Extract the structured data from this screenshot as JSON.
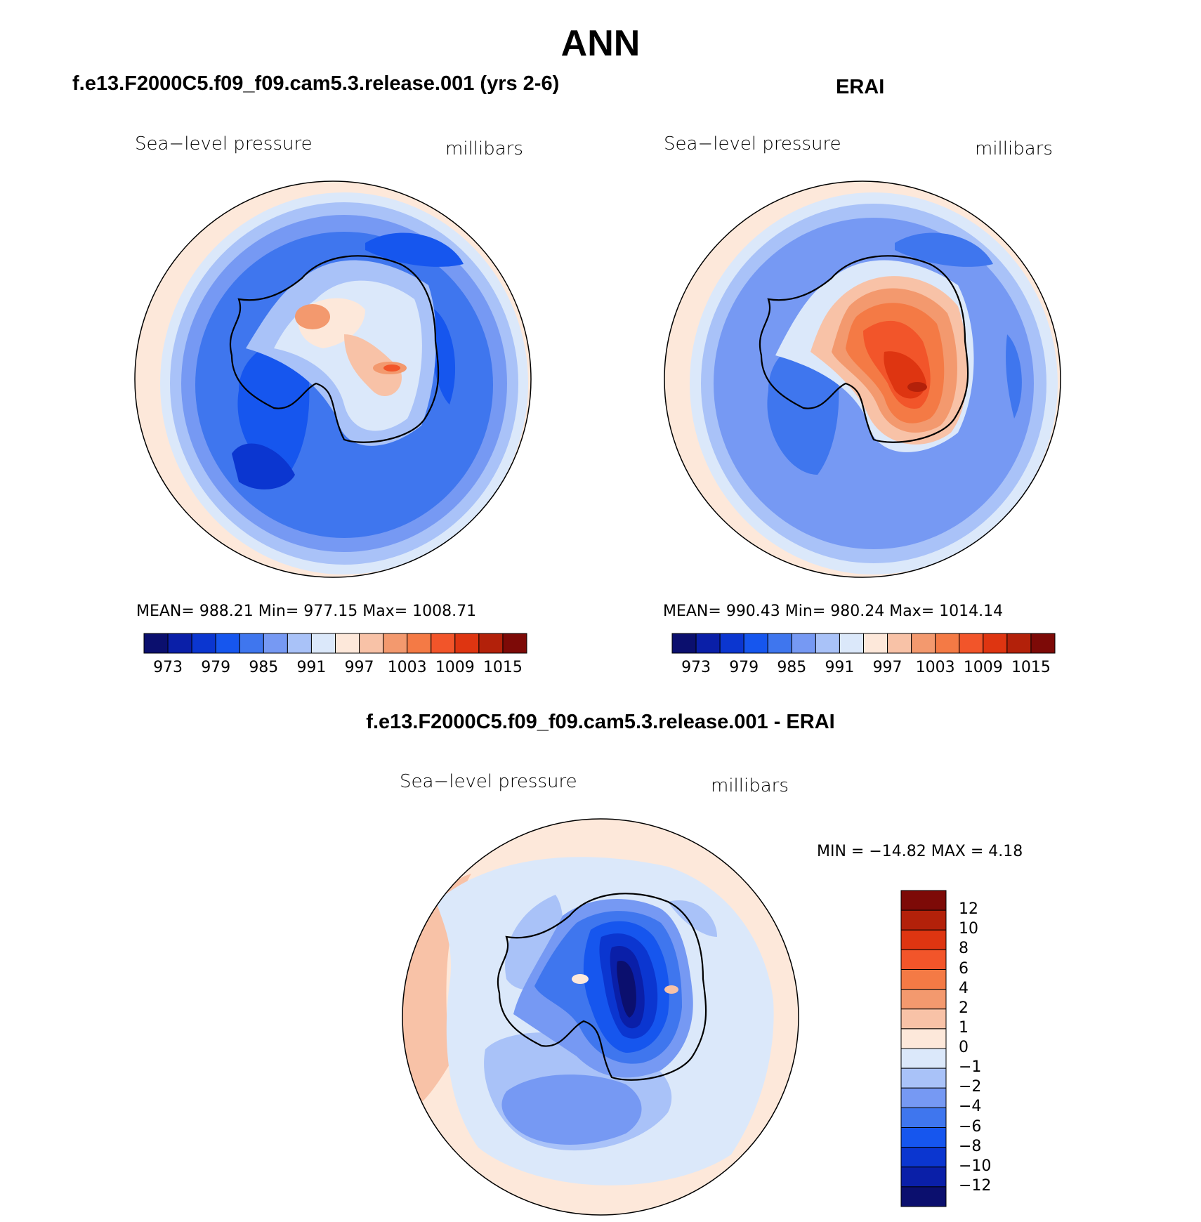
{
  "title": "ANN",
  "panels": {
    "model": {
      "title": "f.e13.F2000C5.f09_f09.cam5.3.release.001 (yrs 2-6)",
      "left_label": "Sea−level pressure",
      "right_label": "millibars",
      "stats": "MEAN= 988.21   Min= 977.15   Max= 1008.71"
    },
    "obs": {
      "title": "ERAI",
      "left_label": "Sea−level pressure",
      "right_label": "millibars",
      "stats": "MEAN= 990.43   Min= 980.24   Max= 1014.14"
    },
    "diff": {
      "title": "f.e13.F2000C5.f09_f09.cam5.3.release.001 - ERAI",
      "left_label": "Sea−level pressure",
      "right_label": "millibars",
      "stats": "MIN = −14.82  MAX =    4.18"
    }
  },
  "chart_data": [
    {
      "type": "heatmap",
      "projection": "south-polar stereographic",
      "title": "f.e13.F2000C5.f09_f09.cam5.3.release.001 (yrs 2-6)",
      "variable": "Sea−level pressure",
      "units": "millibars",
      "mean": 988.21,
      "min": 977.15,
      "max": 1008.71,
      "colorbar_ticks": [
        "973",
        "979",
        "985",
        "991",
        "997",
        "1003",
        "1009",
        "1015"
      ],
      "colors": [
        "#0b0f6e",
        "#0a1fa8",
        "#0b36d0",
        "#1656ee",
        "#3f76ee",
        "#7699f3",
        "#a9c2f8",
        "#dbe8fa",
        "#fde8da",
        "#f8c2a7",
        "#f3996e",
        "#f47a45",
        "#f2552a",
        "#de3511",
        "#b3210a",
        "#7d0a07"
      ]
    },
    {
      "type": "heatmap",
      "projection": "south-polar stereographic",
      "title": "ERAI",
      "variable": "Sea−level pressure",
      "units": "millibars",
      "mean": 990.43,
      "min": 980.24,
      "max": 1014.14,
      "colorbar_ticks": [
        "973",
        "979",
        "985",
        "991",
        "997",
        "1003",
        "1009",
        "1015"
      ],
      "colors": [
        "#0b0f6e",
        "#0a1fa8",
        "#0b36d0",
        "#1656ee",
        "#3f76ee",
        "#7699f3",
        "#a9c2f8",
        "#dbe8fa",
        "#fde8da",
        "#f8c2a7",
        "#f3996e",
        "#f47a45",
        "#f2552a",
        "#de3511",
        "#b3210a",
        "#7d0a07"
      ]
    },
    {
      "type": "heatmap",
      "projection": "south-polar stereographic",
      "title": "f.e13.F2000C5.f09_f09.cam5.3.release.001 - ERAI",
      "variable": "Sea−level pressure",
      "units": "millibars",
      "min": -14.82,
      "max": 4.18,
      "colorbar_ticks": [
        "12",
        "10",
        "8",
        "6",
        "4",
        "2",
        "1",
        "0",
        "−1",
        "−2",
        "−4",
        "−6",
        "−8",
        "−10",
        "−12"
      ],
      "colors": [
        "#7d0a07",
        "#b3210a",
        "#de3511",
        "#f2552a",
        "#f47a45",
        "#f3996e",
        "#f8c2a7",
        "#fde8da",
        "#dbe8fa",
        "#a9c2f8",
        "#7699f3",
        "#3f76ee",
        "#1656ee",
        "#0b36d0",
        "#0a1fa8",
        "#0b0f6e"
      ]
    }
  ]
}
